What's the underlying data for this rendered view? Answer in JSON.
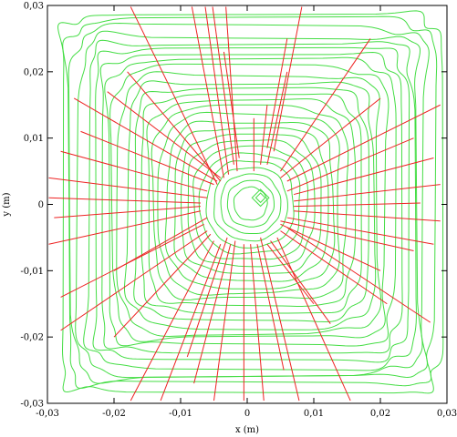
{
  "chart_data": {
    "type": "contour",
    "xlabel": "x (m)",
    "ylabel": "y (m)",
    "xlim": [
      -0.03,
      0.03
    ],
    "ylim": [
      -0.03,
      0.03
    ],
    "x_ticks": [
      -0.03,
      -0.02,
      -0.01,
      0,
      0.01,
      0.02,
      0.03
    ],
    "y_ticks": [
      -0.03,
      -0.02,
      -0.01,
      0,
      0.01,
      0.02,
      0.03
    ],
    "x_tick_labels": [
      "-0,03",
      "-0,02",
      "-0,01",
      "0",
      "0,01",
      "0,02",
      "0,03"
    ],
    "y_tick_labels": [
      "-0,03",
      "-0,02",
      "-0,01",
      "0",
      "0,01",
      "0,02",
      "0,03"
    ],
    "grid": false,
    "colors": {
      "contour": "#44dd44",
      "crack": "#ee2222",
      "frame": "#000000"
    },
    "contour_levels": [
      0.0025,
      0.0035,
      0.0045,
      0.0055,
      0.0065,
      0.0075,
      0.0085,
      0.0095,
      0.0105,
      0.0115,
      0.0125,
      0.0135,
      0.0145,
      0.0155,
      0.0165,
      0.0175,
      0.0185,
      0.0195,
      0.0205,
      0.0215,
      0.0225,
      0.0235,
      0.0245,
      0.0255,
      0.0265,
      0.0275,
      0.0285
    ],
    "contour_center": [
      0.0005,
      0.0001
    ],
    "cracks": [
      [
        -0.0175,
        0.0298,
        -0.0045,
        0.003
      ],
      [
        -0.0083,
        0.0298,
        -0.0035,
        0.004
      ],
      [
        -0.0063,
        0.0298,
        -0.0028,
        0.0045
      ],
      [
        -0.0052,
        0.0298,
        -0.002,
        0.006
      ],
      [
        -0.0032,
        0.0298,
        -0.0015,
        0.005
      ],
      [
        -0.0035,
        0.023,
        -0.0012,
        0.007
      ],
      [
        0.0082,
        0.0298,
        0.004,
        0.008
      ],
      [
        0.006,
        0.025,
        0.003,
        0.0085
      ],
      [
        0.006,
        0.02,
        0.003,
        0.006
      ],
      [
        0.003,
        0.015,
        0.002,
        0.006
      ],
      [
        0.001,
        0.013,
        0.001,
        0.005
      ],
      [
        0.0185,
        0.025,
        0.005,
        0.005
      ],
      [
        0.02,
        0.016,
        0.005,
        0.004
      ],
      [
        0.029,
        0.015,
        0.006,
        0.0035
      ],
      [
        0.025,
        0.01,
        0.006,
        0.002
      ],
      [
        0.028,
        0.007,
        0.007,
        0.0015
      ],
      [
        0.029,
        0.003,
        0.007,
        0.0005
      ],
      [
        0.026,
        0.0002,
        0.007,
        -0.0003
      ],
      [
        0.029,
        -0.0025,
        0.007,
        -0.001
      ],
      [
        0.028,
        -0.006,
        0.006,
        -0.002
      ],
      [
        0.025,
        -0.007,
        0.005,
        -0.0025
      ],
      [
        0.0275,
        -0.0178,
        0.006,
        -0.0035
      ],
      [
        0.021,
        -0.015,
        0.005,
        -0.004
      ],
      [
        0.02,
        -0.01,
        0.005,
        -0.003
      ],
      [
        0.0155,
        -0.0296,
        0.0045,
        -0.005
      ],
      [
        0.0125,
        -0.018,
        0.0035,
        -0.0055
      ],
      [
        0.01,
        -0.015,
        0.003,
        -0.006
      ],
      [
        0.0078,
        -0.0296,
        0.002,
        -0.005
      ],
      [
        0.0055,
        -0.025,
        0.0015,
        -0.006
      ],
      [
        0.0025,
        -0.0296,
        0.0005,
        -0.006
      ],
      [
        -0.0005,
        -0.0296,
        -0.0005,
        -0.006
      ],
      [
        -0.005,
        -0.0296,
        -0.0018,
        -0.0055
      ],
      [
        -0.008,
        -0.027,
        -0.0025,
        -0.006
      ],
      [
        -0.009,
        -0.023,
        -0.003,
        -0.005
      ],
      [
        -0.013,
        -0.0296,
        -0.004,
        -0.006
      ],
      [
        -0.0175,
        -0.0296,
        -0.005,
        -0.0055
      ],
      [
        -0.02,
        -0.02,
        -0.0055,
        -0.0045
      ],
      [
        -0.028,
        -0.019,
        -0.006,
        -0.004
      ],
      [
        -0.028,
        -0.014,
        -0.0065,
        -0.003
      ],
      [
        -0.02,
        -0.01,
        -0.006,
        -0.002
      ],
      [
        -0.0298,
        -0.006,
        -0.007,
        -0.001
      ],
      [
        -0.029,
        -0.002,
        -0.007,
        -0.0003
      ],
      [
        -0.0298,
        0.001,
        -0.007,
        0.0002
      ],
      [
        -0.0298,
        0.004,
        -0.006,
        0.001
      ],
      [
        -0.028,
        0.008,
        -0.006,
        0.002
      ],
      [
        -0.025,
        0.011,
        -0.005,
        0.003
      ],
      [
        -0.026,
        0.016,
        -0.0045,
        0.0035
      ],
      [
        -0.021,
        0.017,
        -0.004,
        0.004
      ],
      [
        -0.018,
        0.02,
        -0.004,
        0.0035
      ]
    ]
  }
}
